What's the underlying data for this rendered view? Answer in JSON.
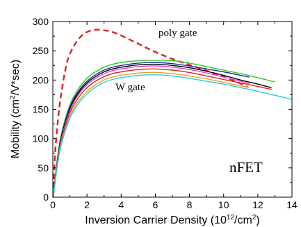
{
  "chart_data": {
    "type": "line",
    "xlabel": {
      "pre": "Inversion Carrier Density (10",
      "sup": "12",
      "post": "/cm",
      "sup2": "2",
      "end": ")"
    },
    "ylabel": {
      "pre": "Mobility (cm",
      "sup": "2",
      "post": "/V*sec)"
    },
    "xlim": [
      0,
      14
    ],
    "ylim": [
      0,
      300
    ],
    "xticks": [
      "0",
      "2",
      "4",
      "6",
      "8",
      "10",
      "12",
      "14"
    ],
    "yticks": [
      "0",
      "50",
      "100",
      "150",
      "200",
      "250",
      "300"
    ],
    "grid": false,
    "annotations": {
      "poly": "poly gate",
      "w": "W gate",
      "device": "nFET"
    },
    "series": [
      {
        "color": "#e02020",
        "dashed": true,
        "x": [
          0.02,
          0.1,
          0.2,
          0.35,
          0.5,
          0.75,
          1.0,
          1.5,
          2.0,
          2.5,
          3.0,
          3.5,
          4.0,
          5.0,
          6.0,
          7.0,
          8.0,
          9.0,
          10.0,
          11.0,
          11.4
        ],
        "y": [
          0,
          58,
          100,
          145,
          178,
          220,
          245,
          270,
          282,
          286,
          285,
          282,
          276,
          262,
          248,
          236,
          226,
          216,
          206,
          194,
          188
        ]
      },
      {
        "color": "#22cc22",
        "dashed": false,
        "x": [
          0.03,
          0.25,
          0.5,
          1.0,
          1.5,
          2.0,
          2.5,
          3.0,
          3.5,
          4.0,
          5.0,
          6.0,
          7.0,
          8.0,
          9.0,
          10.0,
          11.0,
          12.0,
          13.0
        ],
        "y": [
          0,
          62,
          108,
          158,
          185,
          203,
          214,
          222,
          227,
          230,
          233,
          234,
          233,
          229,
          223,
          217,
          211,
          204,
          197
        ]
      },
      {
        "color": "#1a2a9a",
        "dashed": false,
        "x": [
          0.03,
          0.25,
          0.5,
          1.0,
          1.5,
          2.0,
          2.5,
          3.0,
          3.5,
          4.0,
          5.0,
          6.0,
          7.0,
          8.0,
          9.0,
          10.0,
          11.0,
          11.5
        ],
        "y": [
          0,
          60,
          105,
          154,
          181,
          198,
          209,
          217,
          222,
          225,
          229,
          230,
          228,
          224,
          219,
          214,
          208,
          205
        ]
      },
      {
        "color": "#000000",
        "dashed": false,
        "x": [
          0.03,
          0.25,
          0.5,
          1.0,
          1.5,
          2.0,
          2.5,
          3.0,
          3.5,
          4.0,
          5.0,
          6.0,
          7.0,
          8.0,
          9.0,
          10.0,
          11.0,
          12.0,
          12.8
        ],
        "y": [
          0,
          58,
          102,
          151,
          178,
          195,
          206,
          214,
          219,
          222,
          226,
          227,
          225,
          221,
          215,
          208,
          200,
          193,
          187
        ]
      },
      {
        "color": "#e040e0",
        "dashed": false,
        "x": [
          0.03,
          0.25,
          0.5,
          1.0,
          1.5,
          2.0,
          2.5,
          3.0,
          3.5,
          4.0,
          5.0,
          6.0,
          7.0,
          8.0,
          9.0,
          10.0,
          11.0,
          11.5
        ],
        "y": [
          0,
          57,
          100,
          148,
          175,
          192,
          203,
          211,
          216,
          219,
          223,
          224,
          222,
          218,
          212,
          205,
          198,
          194
        ]
      },
      {
        "color": "#e02020",
        "dashed": false,
        "x": [
          0.03,
          0.25,
          0.5,
          1.0,
          1.5,
          2.0,
          2.5,
          3.0,
          3.5,
          4.0,
          5.0,
          6.0,
          7.0,
          8.0,
          9.0,
          10.0,
          11.0,
          12.0,
          12.8
        ],
        "y": [
          0,
          55,
          97,
          144,
          170,
          187,
          198,
          206,
          211,
          214,
          218,
          219,
          217,
          213,
          207,
          201,
          195,
          189,
          184
        ]
      },
      {
        "color": "#e8a020",
        "dashed": false,
        "x": [
          0.03,
          0.25,
          0.5,
          1.0,
          1.5,
          2.0,
          2.5,
          3.0,
          3.5,
          4.0,
          5.0,
          6.0,
          7.0,
          8.0,
          9.0,
          10.0,
          11.0,
          11.5
        ],
        "y": [
          0,
          52,
          93,
          138,
          164,
          180,
          192,
          200,
          205,
          208,
          212,
          213,
          211,
          207,
          202,
          196,
          190,
          187
        ]
      },
      {
        "color": "#22d0e0",
        "dashed": false,
        "x": [
          0.03,
          0.25,
          0.5,
          1.0,
          1.5,
          2.0,
          2.5,
          3.0,
          3.5,
          4.0,
          5.0,
          6.0,
          7.0,
          8.0,
          9.0,
          10.0,
          11.0,
          12.0,
          13.0,
          14.0
        ],
        "y": [
          0,
          50,
          90,
          135,
          160,
          176,
          188,
          196,
          201,
          204,
          208,
          209,
          207,
          203,
          198,
          193,
          187,
          181,
          174,
          167
        ]
      }
    ]
  }
}
